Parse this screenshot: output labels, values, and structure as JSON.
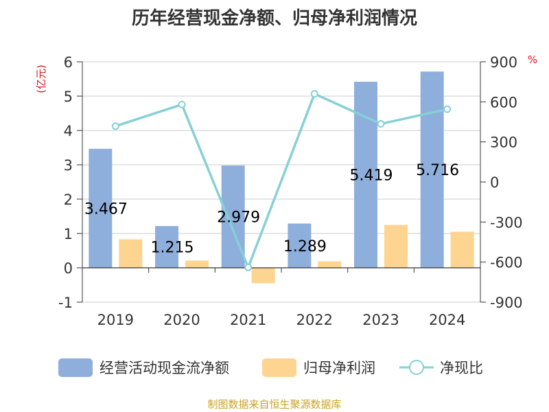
{
  "title": "历年经营现金净额、归母净利润情况",
  "source": "制图数据来自恒生聚源数据库",
  "chart_data": {
    "type": "bar",
    "title": "历年经营现金净额、归母净利润情况",
    "categories": [
      "2019",
      "2020",
      "2021",
      "2022",
      "2023",
      "2024"
    ],
    "y_left": {
      "unit_label": "(亿元)",
      "ticks": [
        "6",
        "5",
        "4",
        "3",
        "2",
        "1",
        "0",
        "-1"
      ],
      "min": -1,
      "max": 6
    },
    "y_right": {
      "unit_label": "%",
      "ticks": [
        "900",
        "600",
        "300",
        "0",
        "-300",
        "-600",
        "-900"
      ],
      "min": -900,
      "max": 900
    },
    "series": [
      {
        "name": "经营活动现金流净额",
        "type": "bar",
        "axis": "left",
        "color": "#8eaedb",
        "values": [
          3.467,
          1.215,
          2.979,
          1.289,
          5.419,
          5.716
        ],
        "labels": [
          "3.467",
          "1.215",
          "2.979",
          "1.289",
          "5.419",
          "5.716"
        ]
      },
      {
        "name": "归母净利润",
        "type": "bar",
        "axis": "left",
        "color": "#fdd590",
        "values": [
          0.83,
          0.21,
          -0.45,
          0.19,
          1.25,
          1.05
        ]
      },
      {
        "name": "净现比",
        "type": "line",
        "axis": "right",
        "color": "#86d0d6",
        "values": [
          418,
          580,
          -640,
          660,
          435,
          545
        ]
      }
    ],
    "grid": true,
    "legend_position": "bottom"
  }
}
